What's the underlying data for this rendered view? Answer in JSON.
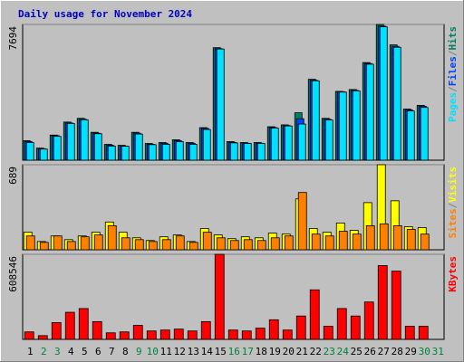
{
  "chart_data": [
    {
      "type": "bar",
      "title": "Daily usage for November 2024",
      "ylim": [
        0,
        7694
      ],
      "yticks": [
        7694
      ],
      "series": [
        {
          "name": "Hits",
          "color": "#008060",
          "values": [
            1107,
            685,
            1423,
            2161,
            2372,
            1581,
            896,
            843,
            1581,
            949,
            1001,
            1159,
            1001,
            1845,
            6377,
            1054,
            1001,
            1001,
            1897,
            2003,
            2688,
            4585,
            2372,
            3900,
            4005,
            5533,
            7694,
            6535,
            2899,
            3109,
            null
          ]
        },
        {
          "name": "Files",
          "color": "#0040ff",
          "values": [
            1060,
            650,
            1390,
            2110,
            2320,
            1530,
            850,
            800,
            1530,
            900,
            960,
            1110,
            960,
            1800,
            6320,
            1010,
            960,
            960,
            1850,
            1960,
            2350,
            4530,
            2320,
            3880,
            3960,
            5480,
            7600,
            6450,
            2850,
            3060,
            null
          ]
        },
        {
          "name": "Pages",
          "color": "#00e0ff",
          "values": [
            1000,
            630,
            1350,
            2080,
            2290,
            1500,
            800,
            790,
            1480,
            880,
            900,
            1050,
            900,
            1740,
            6300,
            980,
            950,
            950,
            1820,
            1940,
            2050,
            4500,
            2280,
            3860,
            3930,
            5440,
            7560,
            6400,
            2790,
            2990,
            null
          ]
        }
      ]
    },
    {
      "type": "bar",
      "ylim": [
        0,
        689
      ],
      "yticks": [
        689
      ],
      "series": [
        {
          "name": "Visits",
          "color": "#ffff00",
          "values": [
            142,
            67,
            112,
            82,
            112,
            142,
            225,
            142,
            97,
            75,
            105,
            120,
            67,
            172,
            120,
            90,
            105,
            97,
            135,
            127,
            412,
            172,
            142,
            217,
            157,
            382,
            689,
            397,
            187,
            180,
            null
          ]
        },
        {
          "name": "Sites",
          "color": "#ff8000",
          "values": [
            112,
            60,
            112,
            67,
            105,
            120,
            195,
            97,
            82,
            67,
            82,
            112,
            60,
            142,
            97,
            75,
            82,
            75,
            97,
            112,
            464,
            127,
            112,
            150,
            127,
            195,
            210,
            195,
            165,
            127,
            null
          ]
        }
      ]
    },
    {
      "type": "bar",
      "ylim": [
        0,
        608546
      ],
      "yticks": [
        608546
      ],
      "categories": [
        "1",
        "2",
        "3",
        "4",
        "5",
        "6",
        "7",
        "8",
        "9",
        "10",
        "11",
        "12",
        "13",
        "14",
        "15",
        "16",
        "17",
        "18",
        "19",
        "20",
        "21",
        "22",
        "23",
        "24",
        "25",
        "26",
        "27",
        "28",
        "29",
        "30",
        "31"
      ],
      "weekend_color": "#008040",
      "weekend": [
        false,
        true,
        true,
        false,
        false,
        false,
        false,
        false,
        true,
        true,
        false,
        false,
        false,
        false,
        false,
        true,
        true,
        false,
        false,
        false,
        false,
        false,
        true,
        true,
        false,
        false,
        false,
        false,
        false,
        true,
        true
      ],
      "series": [
        {
          "name": "KBytes",
          "color": "#ff0000",
          "values": [
            53496,
            26748,
            120366,
            193923,
            220671,
            127053,
            46809,
            53496,
            100305,
            60183,
            66870,
            73557,
            60183,
            127053,
            608546,
            66870,
            60183,
            80244,
            140427,
            66870,
            167175,
            354411,
            93618,
            220671,
            167175,
            267480,
            528273,
            488151,
            93618,
            93618,
            null
          ]
        }
      ]
    }
  ]
}
